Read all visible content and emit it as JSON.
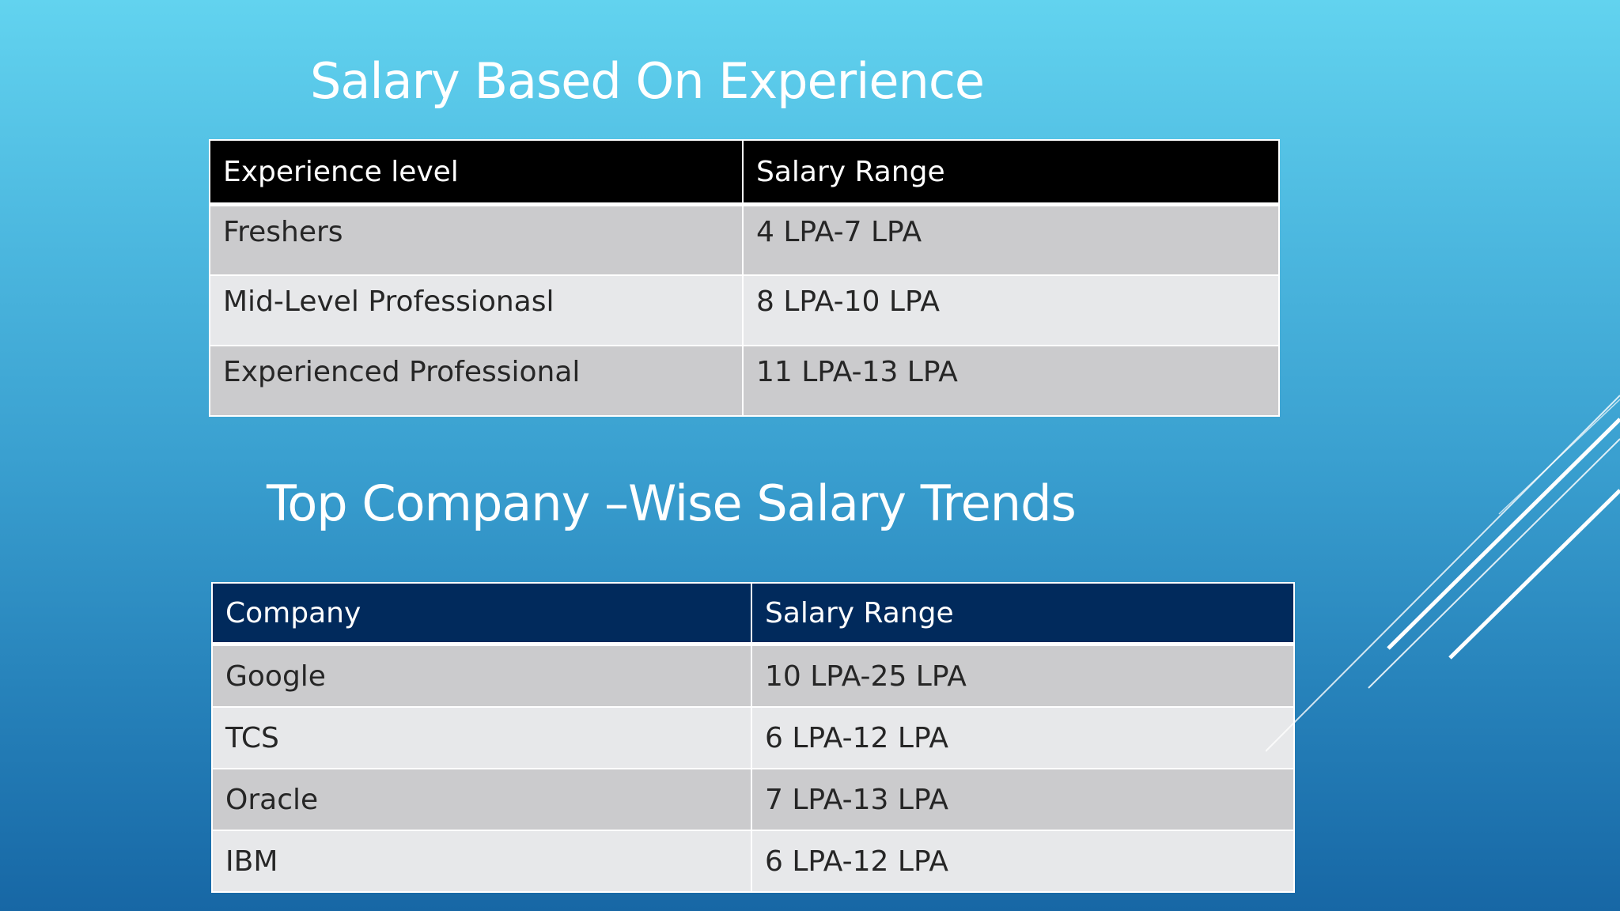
{
  "colors": {
    "background_top": "#62d3ef",
    "background_bottom": "#1767a5",
    "table1_header": "#000000",
    "table2_header": "#012a5c",
    "row_dark": "#cbcbcd",
    "row_light": "#e7e8ea",
    "title_text": "#ffffff"
  },
  "experience_section": {
    "title": "Salary Based On Experience",
    "headers": [
      "Experience level",
      "Salary Range"
    ],
    "rows": [
      [
        "Freshers",
        "4 LPA-7 LPA"
      ],
      [
        "Mid-Level Professionasl",
        "8 LPA-10 LPA"
      ],
      [
        "Experienced Professional",
        "11 LPA-13 LPA"
      ]
    ]
  },
  "company_section": {
    "title": "Top Company –Wise Salary Trends",
    "headers": [
      "Company",
      "Salary Range"
    ],
    "rows": [
      [
        "Google",
        "10 LPA-25 LPA"
      ],
      [
        "TCS",
        "6 LPA-12 LPA"
      ],
      [
        "Oracle",
        "7 LPA-13 LPA"
      ],
      [
        "IBM",
        "6 LPA-12 LPA"
      ]
    ]
  }
}
